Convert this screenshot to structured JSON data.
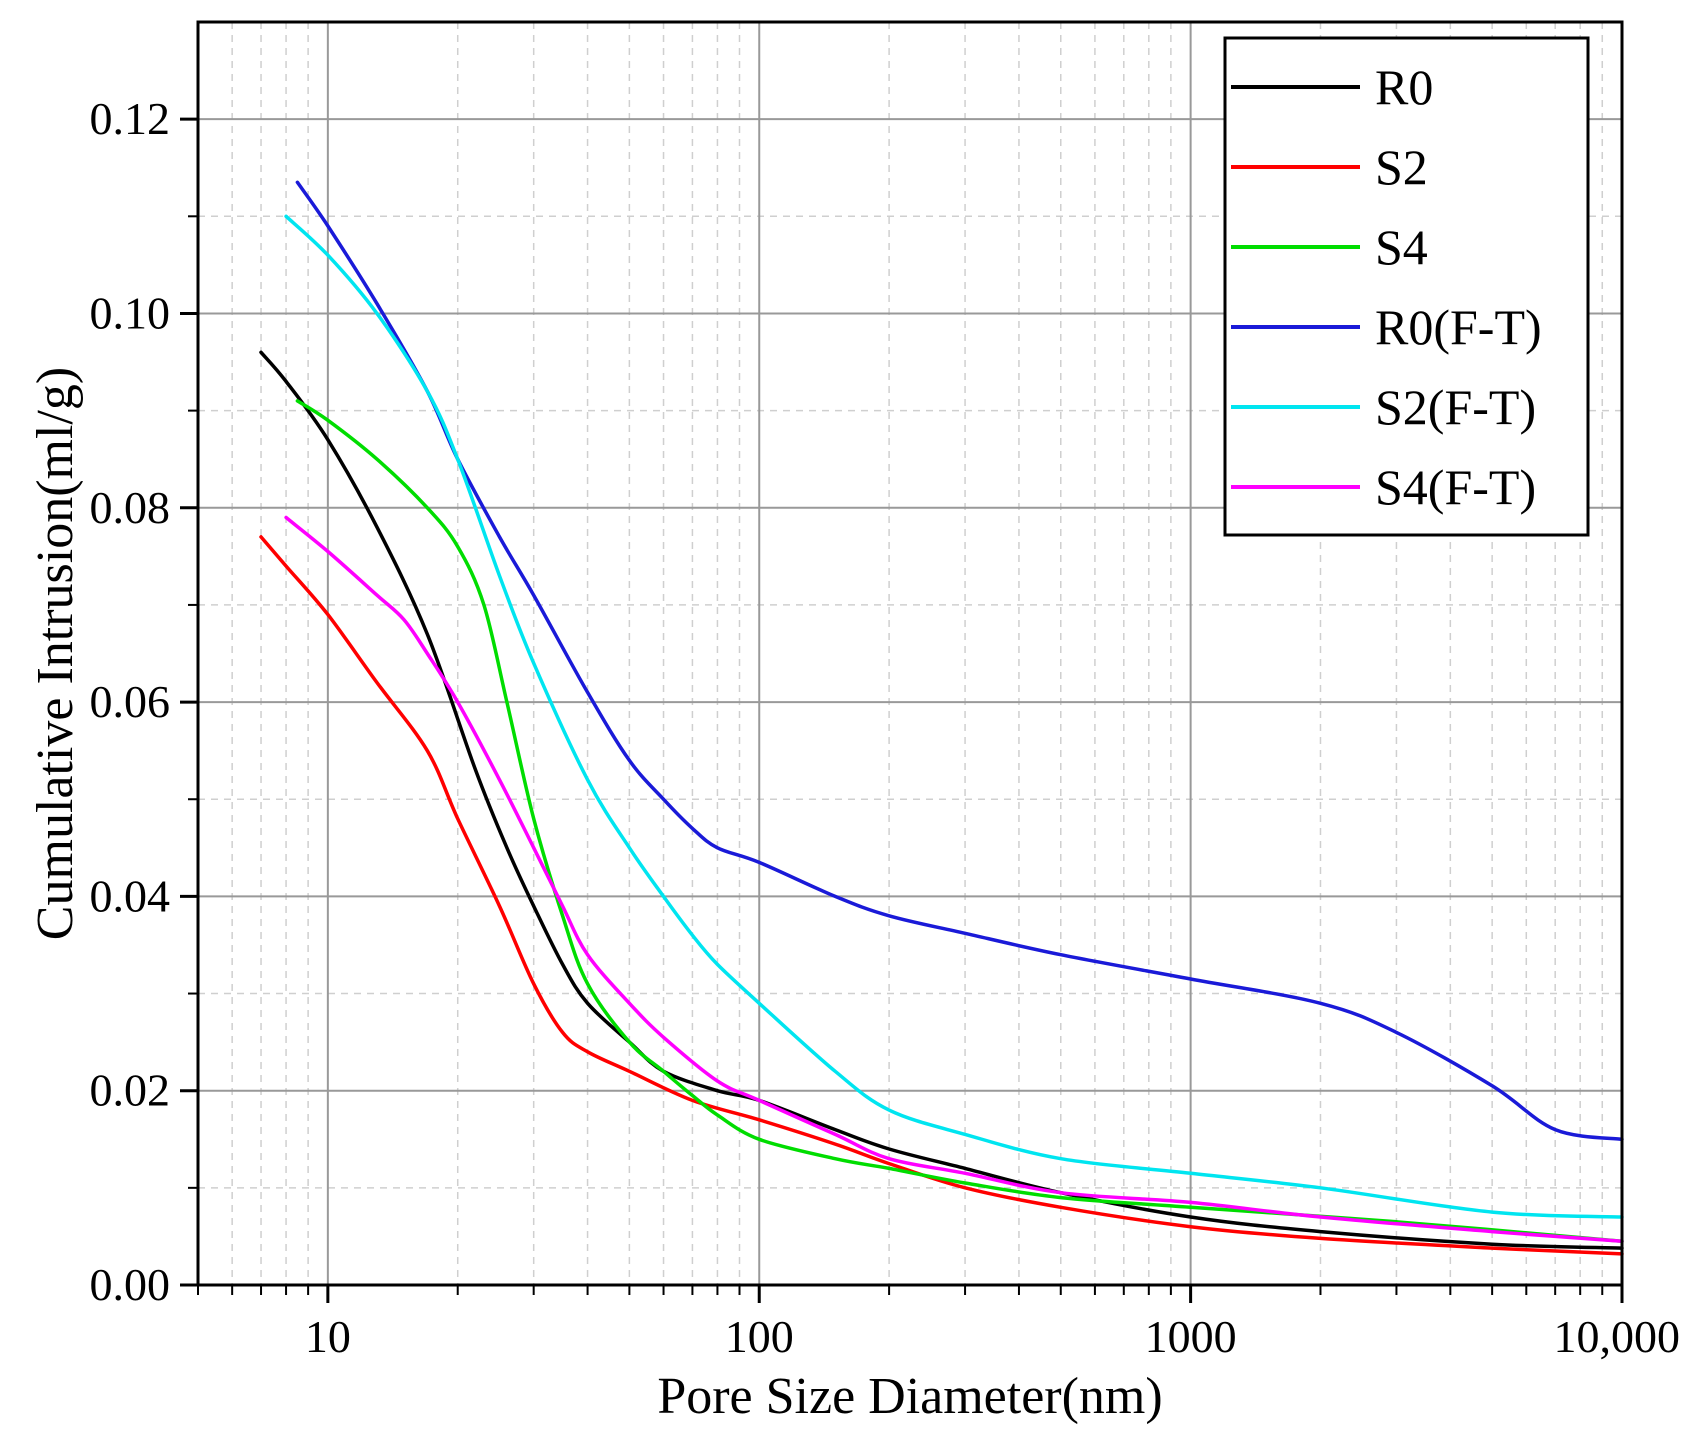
{
  "chart_data": {
    "type": "line",
    "xlabel": "Pore Size Diameter(nm)",
    "ylabel": "Cumulative Intrusion(ml/g)",
    "xscale": "log",
    "xlim": [
      5,
      10000
    ],
    "ylim": [
      0,
      0.13
    ],
    "x_ticks": [
      10,
      100,
      1000,
      10000
    ],
    "x_tick_labels": [
      "10",
      "100",
      "1000",
      "10,000"
    ],
    "y_ticks": [
      0,
      0.02,
      0.04,
      0.06,
      0.08,
      0.1,
      0.12
    ],
    "y_tick_labels": [
      "0.00",
      "0.02",
      "0.04",
      "0.06",
      "0.08",
      "0.10",
      "0.12"
    ],
    "grid": true,
    "legend_position": "top-right",
    "series": [
      {
        "name": "R0",
        "color": "#000000",
        "x": [
          7,
          8,
          10,
          13,
          17,
          22,
          26,
          30,
          35,
          40,
          50,
          60,
          80,
          100,
          150,
          200,
          300,
          500,
          1000,
          2000,
          5000,
          10000
        ],
        "y": [
          0.096,
          0.093,
          0.087,
          0.078,
          0.067,
          0.053,
          0.045,
          0.039,
          0.033,
          0.029,
          0.025,
          0.022,
          0.02,
          0.019,
          0.016,
          0.014,
          0.012,
          0.0095,
          0.007,
          0.0055,
          0.0042,
          0.0038
        ]
      },
      {
        "name": "S2",
        "color": "#ff0000",
        "x": [
          7,
          8,
          10,
          13,
          17,
          20,
          25,
          30,
          35,
          40,
          50,
          70,
          100,
          150,
          200,
          300,
          500,
          1000,
          2000,
          5000,
          10000
        ],
        "y": [
          0.077,
          0.074,
          0.069,
          0.062,
          0.055,
          0.048,
          0.039,
          0.031,
          0.026,
          0.024,
          0.022,
          0.019,
          0.017,
          0.0145,
          0.0125,
          0.01,
          0.008,
          0.006,
          0.0048,
          0.0038,
          0.0032
        ]
      },
      {
        "name": "S4",
        "color": "#00dd00",
        "x": [
          8.5,
          10,
          13,
          17,
          20,
          23,
          26,
          30,
          35,
          40,
          50,
          60,
          70,
          80,
          100,
          150,
          200,
          300,
          500,
          1000,
          3000,
          10000
        ],
        "y": [
          0.091,
          0.089,
          0.085,
          0.08,
          0.076,
          0.07,
          0.06,
          0.048,
          0.038,
          0.031,
          0.025,
          0.022,
          0.0195,
          0.0175,
          0.015,
          0.013,
          0.012,
          0.0105,
          0.009,
          0.008,
          0.0065,
          0.0045
        ]
      },
      {
        "name": "R0(F-T)",
        "color": "#1a1ad8",
        "x": [
          8.5,
          10,
          13,
          17,
          20,
          25,
          30,
          40,
          50,
          60,
          70,
          80,
          100,
          150,
          200,
          300,
          500,
          1000,
          2000,
          3000,
          5000,
          7000,
          10000
        ],
        "y": [
          0.1135,
          0.109,
          0.101,
          0.092,
          0.085,
          0.077,
          0.071,
          0.061,
          0.054,
          0.05,
          0.047,
          0.045,
          0.0435,
          0.04,
          0.038,
          0.0362,
          0.034,
          0.0315,
          0.029,
          0.026,
          0.0205,
          0.016,
          0.015
        ]
      },
      {
        "name": "S2(F-T)",
        "color": "#00e5f0",
        "x": [
          8,
          10,
          13,
          17,
          20,
          25,
          30,
          40,
          50,
          60,
          70,
          80,
          100,
          150,
          200,
          300,
          500,
          1000,
          2000,
          5000,
          10000
        ],
        "y": [
          0.11,
          0.106,
          0.1,
          0.092,
          0.085,
          0.073,
          0.064,
          0.052,
          0.045,
          0.04,
          0.036,
          0.033,
          0.029,
          0.022,
          0.018,
          0.0155,
          0.013,
          0.0115,
          0.01,
          0.0075,
          0.007
        ]
      },
      {
        "name": "S4(F-T)",
        "color": "#ff00ff",
        "x": [
          8,
          10,
          13,
          15,
          17,
          20,
          25,
          30,
          35,
          40,
          50,
          60,
          80,
          100,
          150,
          200,
          300,
          500,
          1000,
          2000,
          5000,
          10000
        ],
        "y": [
          0.079,
          0.0755,
          0.071,
          0.0685,
          0.065,
          0.06,
          0.052,
          0.045,
          0.039,
          0.034,
          0.029,
          0.0255,
          0.021,
          0.019,
          0.0155,
          0.013,
          0.0115,
          0.0095,
          0.0085,
          0.007,
          0.0055,
          0.0045
        ]
      }
    ]
  }
}
